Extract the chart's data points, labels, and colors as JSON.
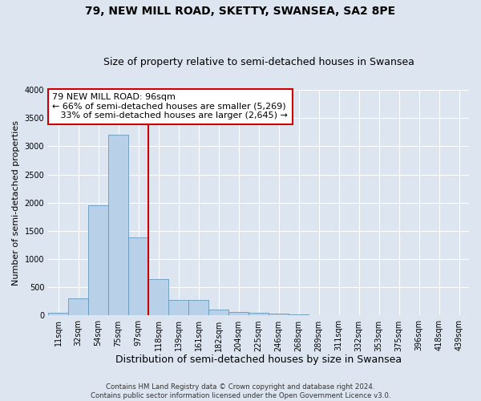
{
  "title": "79, NEW MILL ROAD, SKETTY, SWANSEA, SA2 8PE",
  "subtitle": "Size of property relative to semi-detached houses in Swansea",
  "xlabel": "Distribution of semi-detached houses by size in Swansea",
  "ylabel": "Number of semi-detached properties",
  "footer_line1": "Contains HM Land Registry data © Crown copyright and database right 2024.",
  "footer_line2": "Contains public sector information licensed under the Open Government Licence v3.0.",
  "categories": [
    "11sqm",
    "32sqm",
    "54sqm",
    "75sqm",
    "97sqm",
    "118sqm",
    "139sqm",
    "161sqm",
    "182sqm",
    "204sqm",
    "225sqm",
    "246sqm",
    "268sqm",
    "289sqm",
    "311sqm",
    "332sqm",
    "353sqm",
    "375sqm",
    "396sqm",
    "418sqm",
    "439sqm"
  ],
  "values": [
    50,
    300,
    1960,
    3200,
    1380,
    640,
    280,
    280,
    110,
    70,
    50,
    30,
    20,
    10,
    5,
    3,
    2,
    2,
    1,
    1,
    1
  ],
  "bar_color": "#b8d0e8",
  "bar_edge_color": "#6699bb",
  "vline_bar_index": 4,
  "vline_color": "#cc0000",
  "annotation_line1": "79 NEW MILL ROAD: 96sqm",
  "annotation_line2": "← 66% of semi-detached houses are smaller (5,269)",
  "annotation_line3": "   33% of semi-detached houses are larger (2,645) →",
  "annotation_box_color": "#ffffff",
  "annotation_box_edge_color": "#cc0000",
  "annotation_fontsize": 8,
  "ylim": [
    0,
    4000
  ],
  "background_color": "#dde6f0",
  "plot_bg_color": "#dde6f0",
  "grid_color": "#ffffff",
  "title_fontsize": 10,
  "subtitle_fontsize": 9,
  "xlabel_fontsize": 9,
  "ylabel_fontsize": 8,
  "tick_fontsize": 7
}
